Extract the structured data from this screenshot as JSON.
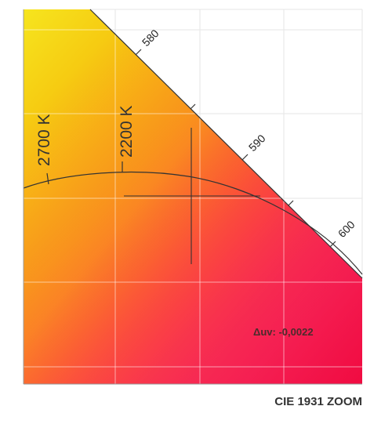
{
  "diagram": {
    "footer_title": "CIE 1931 ZOOM",
    "wavelength_labels": [
      "580",
      "590",
      "600"
    ],
    "cct_labels": [
      "2700 K",
      "2200 K"
    ],
    "duv_readout": "Δuv: -0,0022",
    "colors": {
      "locus_line": "#333333",
      "grid_line": "#ffffff",
      "outside_region": "#ffffff",
      "gradient_top_left": "#f6e51e",
      "gradient_middle": "#f7a600",
      "gradient_orange": "#ff6a00",
      "gradient_bottom_left": "#ff4f86",
      "gradient_bottom_right": "#f0083e"
    }
  }
}
